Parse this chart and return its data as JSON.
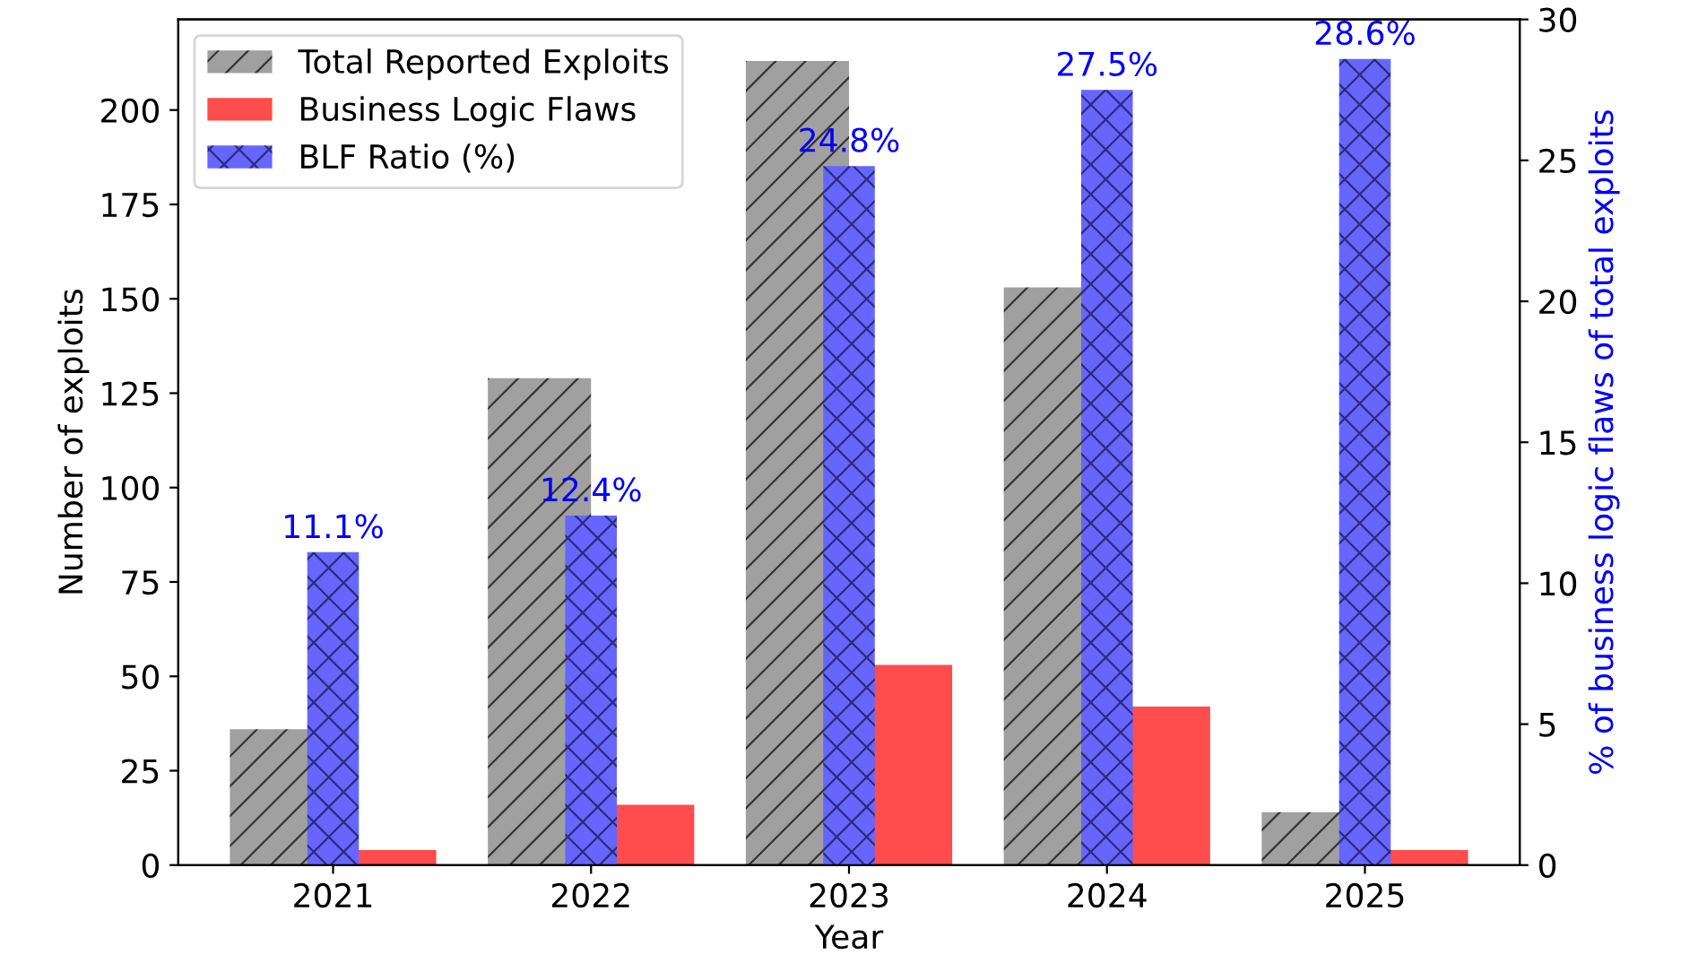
{
  "chart_data": {
    "type": "bar",
    "xlabel": "Year",
    "ylabel": "Number of exploits",
    "y2label": "% of business logic flaws of total exploits",
    "categories": [
      "2021",
      "2022",
      "2023",
      "2024",
      "2025"
    ],
    "series": [
      {
        "name": "Total Reported Exploits",
        "color": "#a0a0a0",
        "values": [
          36,
          129,
          213,
          153,
          14
        ]
      },
      {
        "name": "Business Logic Flaws",
        "color": "#ff4c4c",
        "values": [
          4,
          16,
          53,
          42,
          4
        ]
      },
      {
        "name": "BLF Ratio (%)",
        "color": "#6666ff",
        "axis": "y2",
        "values": [
          11.1,
          12.4,
          24.8,
          27.5,
          28.6
        ],
        "value_labels": [
          "11.1%",
          "12.4%",
          "24.8%",
          "27.5%",
          "28.6%"
        ]
      }
    ],
    "ylim": [
      0,
      224
    ],
    "yticks": [
      0,
      25,
      50,
      75,
      100,
      125,
      150,
      175,
      200
    ],
    "y2lim": [
      0,
      30
    ],
    "y2ticks": [
      0,
      5,
      10,
      15,
      20,
      25,
      30
    ],
    "legend": "top left",
    "grid": false
  }
}
